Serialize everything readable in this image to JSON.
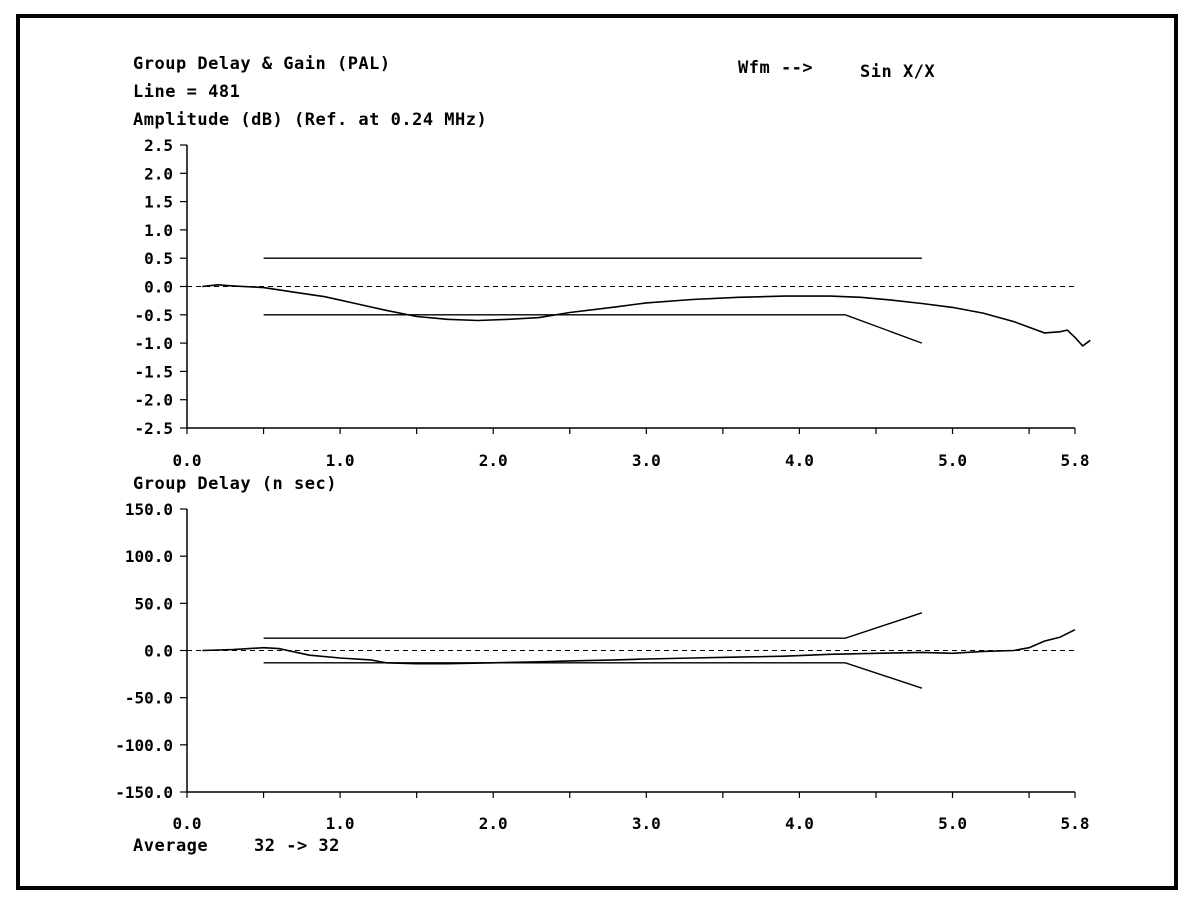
{
  "header": {
    "title": "Group Delay & Gain (PAL)",
    "line": "Line = 481",
    "wfm_label": "Wfm -->",
    "wfm_value": "Sin X/X"
  },
  "footer": {
    "average_label": "Average",
    "average_value": "32 ->  32"
  },
  "colors": {
    "line": "#000000",
    "background": "#ffffff"
  },
  "chart_data": [
    {
      "type": "line",
      "title": "Amplitude (dB)   (Ref. at 0.24 MHz)",
      "xlabel": "",
      "ylabel": "Amplitude (dB)",
      "xlim": [
        0.0,
        5.8
      ],
      "ylim": [
        -2.5,
        2.5
      ],
      "x_ticks": [
        0.0,
        0.5,
        1.0,
        1.5,
        2.0,
        2.5,
        3.0,
        3.5,
        4.0,
        4.5,
        5.0,
        5.5,
        5.8
      ],
      "x_tick_labels": [
        "0.0",
        "1.0",
        "2.0",
        "3.0",
        "4.0",
        "5.0",
        "5.8"
      ],
      "x_tick_label_values": [
        0.0,
        1.0,
        2.0,
        3.0,
        4.0,
        5.0,
        5.8
      ],
      "y_ticks": [
        2.5,
        2.0,
        1.5,
        1.0,
        0.5,
        0.0,
        -0.5,
        -1.0,
        -1.5,
        -2.0,
        -2.5
      ],
      "y_tick_labels": [
        "2.5",
        "2.0",
        "1.5",
        "1.0",
        "0.5",
        "0.0",
        "-0.5",
        "-1.0",
        "-1.5",
        "-2.0",
        "-2.5"
      ],
      "reference_line": 0.0,
      "series": [
        {
          "role": "measured",
          "x": [
            0.1,
            0.2,
            0.3,
            0.5,
            0.7,
            0.9,
            1.1,
            1.3,
            1.5,
            1.7,
            1.9,
            2.1,
            2.3,
            2.5,
            2.8,
            3.0,
            3.3,
            3.6,
            3.9,
            4.2,
            4.4,
            4.6,
            4.8,
            5.0,
            5.2,
            5.4,
            5.5,
            5.6,
            5.7,
            5.75,
            5.8,
            5.85,
            5.9
          ],
          "y": [
            0.0,
            0.03,
            0.01,
            -0.02,
            -0.1,
            -0.18,
            -0.3,
            -0.42,
            -0.53,
            -0.58,
            -0.6,
            -0.58,
            -0.55,
            -0.46,
            -0.36,
            -0.29,
            -0.23,
            -0.19,
            -0.17,
            -0.17,
            -0.19,
            -0.24,
            -0.3,
            -0.37,
            -0.47,
            -0.62,
            -0.72,
            -0.82,
            -0.8,
            -0.77,
            -0.9,
            -1.05,
            -0.95
          ]
        },
        {
          "role": "upper-limit",
          "x": [
            0.5,
            4.8
          ],
          "y": [
            0.5,
            0.5
          ]
        },
        {
          "role": "lower-limit",
          "x": [
            0.5,
            4.3,
            4.8
          ],
          "y": [
            -0.5,
            -0.5,
            -1.0
          ]
        }
      ]
    },
    {
      "type": "line",
      "title": "Group Delay (n sec)",
      "xlabel": "",
      "ylabel": "Group Delay (n sec)",
      "xlim": [
        0.0,
        5.8
      ],
      "ylim": [
        -150.0,
        150.0
      ],
      "x_ticks": [
        0.0,
        0.5,
        1.0,
        1.5,
        2.0,
        2.5,
        3.0,
        3.5,
        4.0,
        4.5,
        5.0,
        5.5,
        5.8
      ],
      "x_tick_labels": [
        "0.0",
        "1.0",
        "2.0",
        "3.0",
        "4.0",
        "5.0",
        "5.8"
      ],
      "x_tick_label_values": [
        0.0,
        1.0,
        2.0,
        3.0,
        4.0,
        5.0,
        5.8
      ],
      "y_ticks": [
        150.0,
        100.0,
        50.0,
        0.0,
        -50.0,
        -100.0,
        -150.0
      ],
      "y_tick_labels": [
        "150.0",
        "100.0",
        "50.0",
        "0.0",
        "-50.0",
        "-100.0",
        "-150.0"
      ],
      "reference_line": 0.0,
      "series": [
        {
          "role": "measured",
          "x": [
            0.1,
            0.3,
            0.5,
            0.6,
            0.8,
            1.0,
            1.2,
            1.3,
            1.5,
            1.7,
            2.0,
            2.3,
            2.5,
            2.8,
            3.0,
            3.3,
            3.6,
            3.9,
            4.2,
            4.5,
            4.8,
            5.0,
            5.2,
            5.4,
            5.5,
            5.6,
            5.7,
            5.8
          ],
          "y": [
            0.0,
            1.0,
            3.0,
            2.0,
            -5.0,
            -8.0,
            -10.0,
            -13.0,
            -14.0,
            -14.0,
            -13.0,
            -12.0,
            -11.0,
            -10.0,
            -9.0,
            -8.0,
            -7.0,
            -6.0,
            -4.0,
            -3.0,
            -2.0,
            -3.0,
            -1.0,
            0.0,
            3.0,
            10.0,
            14.0,
            22.0
          ]
        },
        {
          "role": "upper-limit",
          "x": [
            0.5,
            4.3,
            4.8
          ],
          "y": [
            13.0,
            13.0,
            40.0
          ]
        },
        {
          "role": "lower-limit",
          "x": [
            0.5,
            4.3,
            4.8
          ],
          "y": [
            -13.0,
            -13.0,
            -40.0
          ]
        }
      ]
    }
  ]
}
